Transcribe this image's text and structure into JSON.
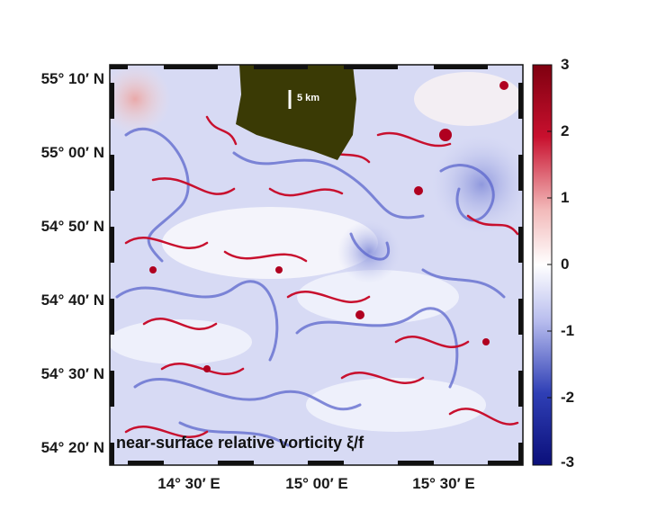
{
  "map": {
    "latitude_labels": [
      "55° 10′ N",
      "55° 00′ N",
      "54° 50′ N",
      "54° 40′ N",
      "54° 30′ N",
      "54° 20′ N"
    ],
    "longitude_labels": [
      "14° 30′ E",
      "15° 00′ E",
      "15° 30′ E"
    ],
    "caption": "near-surface relative vorticity ξ/f",
    "scale_bar_label": "5 km",
    "colorbar": {
      "ticks": [
        "3",
        "2",
        "1",
        "0",
        "-1",
        "-2",
        "-3"
      ],
      "colors": {
        "max": "#7f0010",
        "high": "#c8102e",
        "mid": "#ffffff",
        "low": "#2f3fb5",
        "min": "#0b0f7a"
      }
    },
    "land_color": "#3a3a05",
    "background_vorticity_color": "#c9cdf0"
  }
}
